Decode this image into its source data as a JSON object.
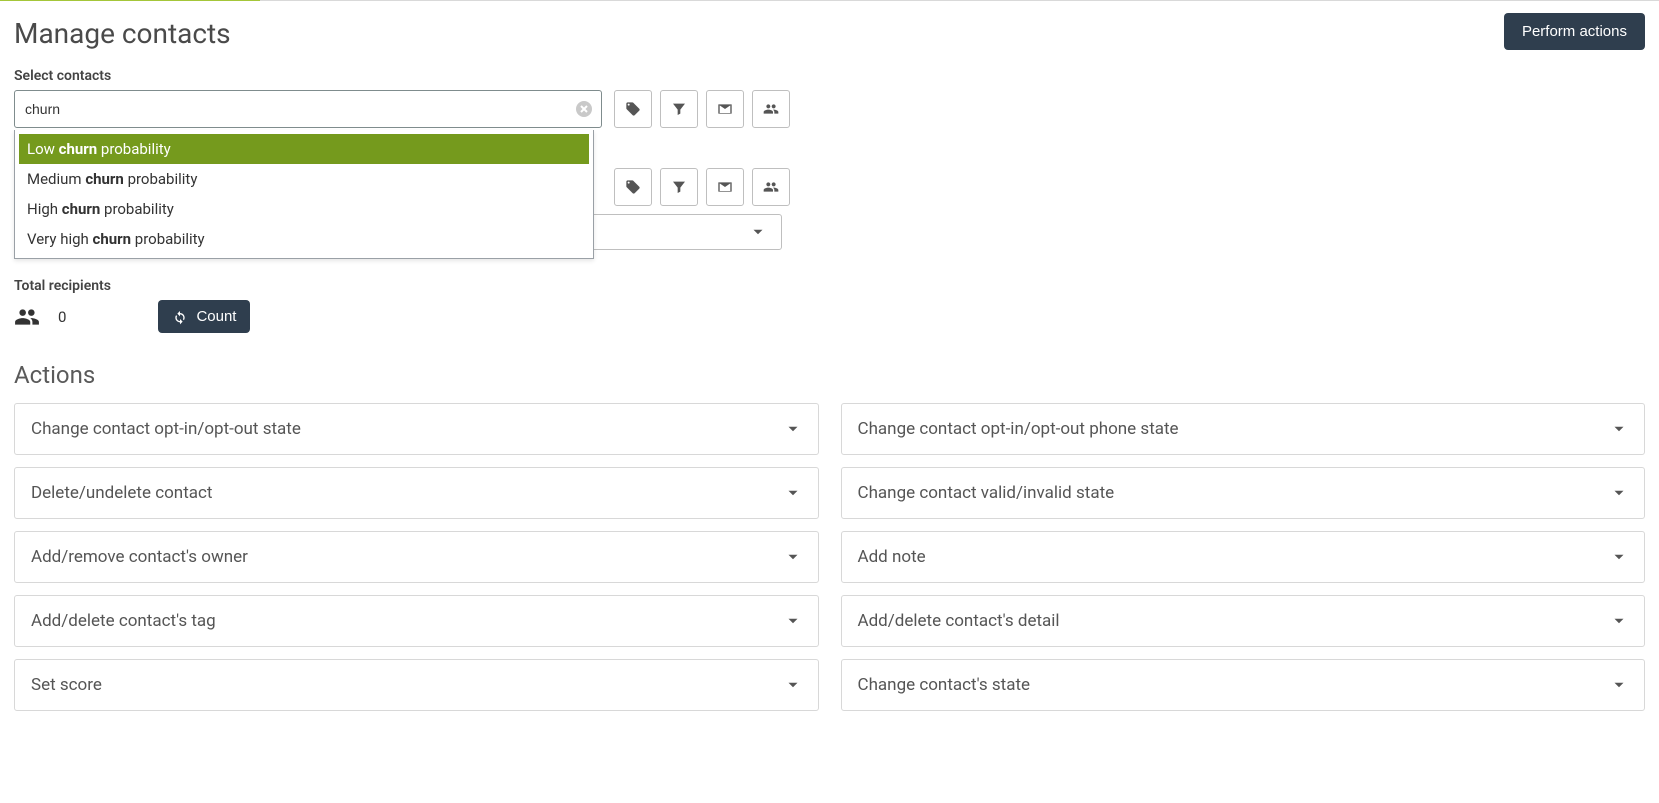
{
  "colors": {
    "accent_green": "#759a1d",
    "top_bar_green": "#a4c639",
    "btn_dark": "#2f3e4e",
    "border": "#bfbfbf",
    "text": "#555555"
  },
  "header": {
    "title": "Manage contacts",
    "perform_actions_label": "Perform actions"
  },
  "select_contacts": {
    "label": "Select contacts",
    "input_value": "churn",
    "suggestions": [
      {
        "pre": "Low ",
        "match": "churn",
        "post": " probability",
        "active": true
      },
      {
        "pre": "Medium ",
        "match": "churn",
        "post": " probability",
        "active": false
      },
      {
        "pre": "High ",
        "match": "churn",
        "post": " probability",
        "active": false
      },
      {
        "pre": "Very high ",
        "match": "churn",
        "post": " probability",
        "active": false
      }
    ]
  },
  "recipients": {
    "label": "Total recipients",
    "count": "0",
    "count_button_label": "Count"
  },
  "actions": {
    "title": "Actions",
    "left": [
      "Change contact opt-in/opt-out state",
      "Delete/undelete contact",
      "Add/remove contact's owner",
      "Add/delete contact's tag",
      "Set score"
    ],
    "right": [
      "Change contact opt-in/opt-out phone state",
      "Change contact valid/invalid state",
      "Add note",
      "Add/delete contact's detail",
      "Change contact's state"
    ]
  }
}
